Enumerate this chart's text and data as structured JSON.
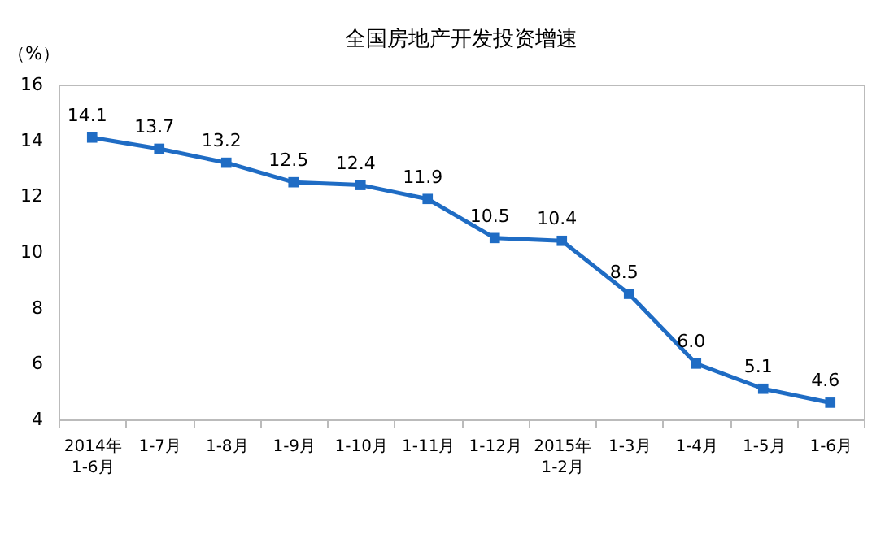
{
  "chart_data": {
    "type": "line",
    "title": "全国房地产开发投资增速",
    "ylabel": "（%）",
    "categories": [
      "2014年\n1-6月",
      "1-7月",
      "1-8月",
      "1-9月",
      "1-10月",
      "1-11月",
      "1-12月",
      "2015年\n1-2月",
      "1-3月",
      "1-4月",
      "1-5月",
      "1-6月"
    ],
    "series": [
      {
        "color": "#1f6cc4",
        "values": [
          14.1,
          13.7,
          13.2,
          12.5,
          12.4,
          11.9,
          10.5,
          10.4,
          8.5,
          6.0,
          5.1,
          4.6
        ],
        "value_labels": [
          "14.1",
          "13.7",
          "13.2",
          "12.5",
          "12.4",
          "11.9",
          "10.5",
          "10.4",
          "8.5",
          "6.0",
          "5.1",
          "4.6"
        ]
      }
    ],
    "ylim": [
      4,
      16
    ],
    "yticks": [
      4,
      6,
      8,
      10,
      12,
      14,
      16
    ],
    "grid": false,
    "legend": false,
    "marker": "square",
    "line_style": "solid"
  }
}
